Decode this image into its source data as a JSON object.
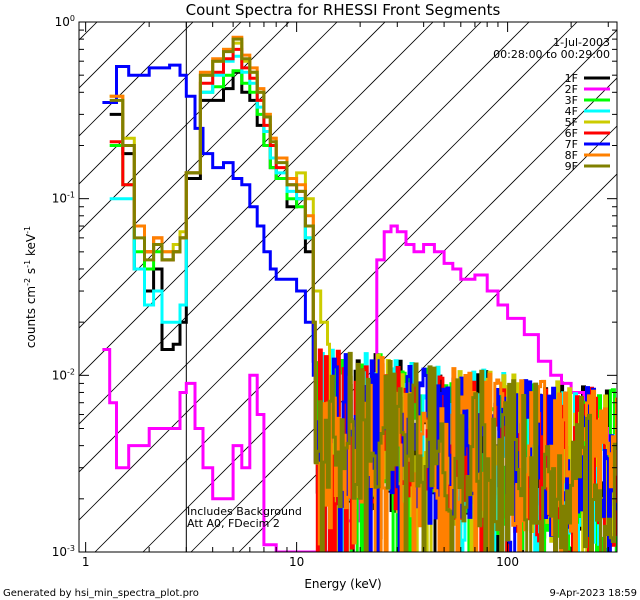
{
  "chart_data": {
    "type": "line",
    "title": "Count Spectra for RHESSI Front Segments",
    "xlabel": "Energy (keV)",
    "ylabel": "counts cm",
    "ylabel_sup1": "-2",
    "ylabel_mid": " s",
    "ylabel_sup2": "-1",
    "ylabel_end": " keV",
    "ylabel_sup3": "-1",
    "x_scale": "log",
    "y_scale": "log",
    "xlim": [
      0.93,
      330
    ],
    "ylim": [
      0.001,
      1.0
    ],
    "x_ticks": [
      {
        "value": 1,
        "label": "1"
      },
      {
        "value": 10,
        "label": "10"
      },
      {
        "value": 100,
        "label": "100"
      }
    ],
    "y_ticks": [
      {
        "value": 1.0,
        "base": "10",
        "exp": "0"
      },
      {
        "value": 0.1,
        "base": "10",
        "exp": "-1"
      },
      {
        "value": 0.01,
        "base": "10",
        "exp": "-2"
      },
      {
        "value": 0.001,
        "base": "10",
        "exp": "-3"
      }
    ],
    "attenuator_edge_keV": 3,
    "date": "1-Jul-2003",
    "time_range": "00:28:00 to 00:29:00",
    "annotation_line1": "Includes Background",
    "annotation_line2": "Att A0, FDecim 2",
    "legend_position": "top-right",
    "series": [
      {
        "name": "1F",
        "color": "#000000",
        "seed": 11,
        "values": [
          [
            1.3,
            0.3
          ],
          [
            1.5,
            0.18
          ],
          [
            1.7,
            0.04
          ],
          [
            1.9,
            0.03
          ],
          [
            2.1,
            0.04
          ],
          [
            2.3,
            0.014
          ],
          [
            2.6,
            0.015
          ],
          [
            2.8,
            0.02
          ],
          [
            3.0,
            0.13
          ],
          [
            3.5,
            0.36
          ],
          [
            4.0,
            0.36
          ],
          [
            4.5,
            0.42
          ],
          [
            5.0,
            0.52
          ],
          [
            5.5,
            0.4
          ],
          [
            6.0,
            0.36
          ],
          [
            6.5,
            0.26
          ],
          [
            7.0,
            0.2
          ],
          [
            7.5,
            0.15
          ],
          [
            8.0,
            0.13
          ],
          [
            9.0,
            0.09
          ],
          [
            10.0,
            0.1
          ],
          [
            11.0,
            0.05
          ],
          [
            12.0,
            0.012
          ]
        ]
      },
      {
        "name": "2F",
        "color": "#ff00ff",
        "seed": 22,
        "values": [
          [
            1.2,
            0.014
          ],
          [
            1.3,
            0.007
          ],
          [
            1.4,
            0.003
          ],
          [
            1.6,
            0.004
          ],
          [
            1.8,
            0.004
          ],
          [
            2.0,
            0.005
          ],
          [
            2.2,
            0.005
          ],
          [
            2.5,
            0.005
          ],
          [
            2.8,
            0.008
          ],
          [
            3.0,
            0.009
          ],
          [
            3.3,
            0.005
          ],
          [
            3.6,
            0.003
          ],
          [
            4.0,
            0.002
          ],
          [
            4.5,
            0.002
          ],
          [
            5.0,
            0.004
          ],
          [
            5.5,
            0.003
          ],
          [
            6.0,
            0.01
          ],
          [
            6.5,
            0.006
          ],
          [
            7.0,
            0.0011
          ],
          [
            8.0,
            0.001
          ],
          [
            9.0,
            0.001
          ],
          [
            15,
            0.0011
          ],
          [
            17,
            0.0015
          ],
          [
            20,
            0.003
          ],
          [
            22,
            0.008
          ],
          [
            24,
            0.045
          ],
          [
            26,
            0.065
          ],
          [
            28,
            0.07
          ],
          [
            30,
            0.065
          ],
          [
            33,
            0.055
          ],
          [
            36,
            0.05
          ],
          [
            40,
            0.055
          ],
          [
            45,
            0.05
          ],
          [
            50,
            0.043
          ],
          [
            55,
            0.04
          ],
          [
            60,
            0.035
          ],
          [
            70,
            0.037
          ],
          [
            80,
            0.03
          ],
          [
            90,
            0.025
          ],
          [
            100,
            0.021
          ],
          [
            120,
            0.017
          ],
          [
            140,
            0.012
          ],
          [
            160,
            0.01
          ],
          [
            180,
            0.009
          ],
          [
            200,
            0.008
          ],
          [
            230,
            0.007
          ],
          [
            260,
            0.005
          ],
          [
            300,
            0.004
          ],
          [
            320,
            0.0035
          ]
        ]
      },
      {
        "name": "3F",
        "color": "#00ff00",
        "seed": 33,
        "values": [
          [
            1.3,
            0.2
          ],
          [
            1.5,
            0.12
          ],
          [
            1.7,
            0.05
          ],
          [
            1.9,
            0.04
          ],
          [
            2.1,
            0.05
          ],
          [
            2.3,
            0.045
          ],
          [
            2.6,
            0.05
          ],
          [
            2.8,
            0.06
          ],
          [
            3.0,
            0.14
          ],
          [
            3.5,
            0.4
          ],
          [
            4.0,
            0.43
          ],
          [
            4.5,
            0.5
          ],
          [
            5.0,
            0.53
          ],
          [
            5.5,
            0.45
          ],
          [
            6.0,
            0.4
          ],
          [
            6.5,
            0.3
          ],
          [
            7.0,
            0.2
          ],
          [
            7.5,
            0.15
          ],
          [
            8.0,
            0.13
          ],
          [
            9.0,
            0.1
          ],
          [
            10.0,
            0.09
          ],
          [
            11.0,
            0.06
          ],
          [
            12.0,
            0.015
          ]
        ]
      },
      {
        "name": "4F",
        "color": "#00ffff",
        "seed": 44,
        "values": [
          [
            1.3,
            0.1
          ],
          [
            1.5,
            0.1
          ],
          [
            1.7,
            0.04
          ],
          [
            1.9,
            0.025
          ],
          [
            2.1,
            0.03
          ],
          [
            2.3,
            0.02
          ],
          [
            2.6,
            0.02
          ],
          [
            2.8,
            0.025
          ],
          [
            3.0,
            0.14
          ],
          [
            3.5,
            0.4
          ],
          [
            4.0,
            0.5
          ],
          [
            4.5,
            0.6
          ],
          [
            5.0,
            0.64
          ],
          [
            5.5,
            0.52
          ],
          [
            6.0,
            0.45
          ],
          [
            6.5,
            0.33
          ],
          [
            7.0,
            0.24
          ],
          [
            7.5,
            0.17
          ],
          [
            8.0,
            0.14
          ],
          [
            9.0,
            0.11
          ],
          [
            10.0,
            0.1
          ],
          [
            11.0,
            0.06
          ],
          [
            12.0,
            0.016
          ]
        ]
      },
      {
        "name": "5F",
        "color": "#cccc00",
        "seed": 55,
        "values": [
          [
            1.3,
            0.38
          ],
          [
            1.5,
            0.22
          ],
          [
            1.7,
            0.07
          ],
          [
            1.9,
            0.05
          ],
          [
            2.1,
            0.06
          ],
          [
            2.3,
            0.05
          ],
          [
            2.6,
            0.055
          ],
          [
            2.8,
            0.065
          ],
          [
            3.0,
            0.14
          ],
          [
            3.5,
            0.5
          ],
          [
            4.0,
            0.6
          ],
          [
            4.5,
            0.7
          ],
          [
            5.0,
            0.76
          ],
          [
            5.5,
            0.6
          ],
          [
            6.0,
            0.52
          ],
          [
            6.5,
            0.4
          ],
          [
            7.0,
            0.3
          ],
          [
            7.5,
            0.22
          ],
          [
            8.0,
            0.17
          ],
          [
            9.0,
            0.13
          ],
          [
            10.0,
            0.14
          ],
          [
            11.0,
            0.1
          ],
          [
            12.0,
            0.03
          ],
          [
            13.0,
            0.02
          ],
          [
            14.0,
            0.015
          ]
        ]
      },
      {
        "name": "6F",
        "color": "#ff0000",
        "seed": 66,
        "values": [
          [
            1.3,
            0.21
          ],
          [
            1.5,
            0.12
          ],
          [
            1.7,
            0.07
          ],
          [
            1.9,
            0.05
          ],
          [
            2.1,
            0.06
          ],
          [
            2.3,
            0.045
          ],
          [
            2.6,
            0.05
          ],
          [
            2.8,
            0.06
          ],
          [
            3.0,
            0.14
          ],
          [
            3.5,
            0.45
          ],
          [
            4.0,
            0.52
          ],
          [
            4.5,
            0.62
          ],
          [
            5.0,
            0.7
          ],
          [
            5.5,
            0.55
          ],
          [
            6.0,
            0.48
          ],
          [
            6.5,
            0.36
          ],
          [
            7.0,
            0.26
          ],
          [
            7.5,
            0.2
          ],
          [
            8.0,
            0.15
          ],
          [
            9.0,
            0.12
          ],
          [
            10.0,
            0.11
          ],
          [
            11.0,
            0.07
          ],
          [
            12.0,
            0.018
          ]
        ]
      },
      {
        "name": "7F",
        "color": "#0000ff",
        "seed": 77,
        "values": [
          [
            1.2,
            0.35
          ],
          [
            1.4,
            0.56
          ],
          [
            1.6,
            0.5
          ],
          [
            1.8,
            0.5
          ],
          [
            2.0,
            0.55
          ],
          [
            2.2,
            0.55
          ],
          [
            2.5,
            0.57
          ],
          [
            2.8,
            0.5
          ],
          [
            3.0,
            0.38
          ],
          [
            3.3,
            0.25
          ],
          [
            3.6,
            0.18
          ],
          [
            4.0,
            0.15
          ],
          [
            4.5,
            0.16
          ],
          [
            5.0,
            0.13
          ],
          [
            5.5,
            0.12
          ],
          [
            6.0,
            0.09
          ],
          [
            6.5,
            0.07
          ],
          [
            7.0,
            0.05
          ],
          [
            7.5,
            0.04
          ],
          [
            8.0,
            0.035
          ],
          [
            9.0,
            0.035
          ],
          [
            10.0,
            0.03
          ],
          [
            11.0,
            0.02
          ],
          [
            12.0,
            0.01
          ]
        ]
      },
      {
        "name": "8F",
        "color": "#ff8000",
        "seed": 88,
        "values": [
          [
            1.3,
            0.38
          ],
          [
            1.5,
            0.2
          ],
          [
            1.7,
            0.07
          ],
          [
            1.9,
            0.05
          ],
          [
            2.1,
            0.06
          ],
          [
            2.3,
            0.05
          ],
          [
            2.6,
            0.05
          ],
          [
            2.8,
            0.06
          ],
          [
            3.0,
            0.14
          ],
          [
            3.5,
            0.52
          ],
          [
            4.0,
            0.62
          ],
          [
            4.5,
            0.7
          ],
          [
            5.0,
            0.82
          ],
          [
            5.5,
            0.65
          ],
          [
            6.0,
            0.55
          ],
          [
            6.5,
            0.42
          ],
          [
            7.0,
            0.3
          ],
          [
            7.5,
            0.22
          ],
          [
            8.0,
            0.17
          ],
          [
            9.0,
            0.13
          ],
          [
            10.0,
            0.12
          ],
          [
            11.0,
            0.08
          ],
          [
            12.0,
            0.02
          ]
        ]
      },
      {
        "name": "9F",
        "color": "#808000",
        "seed": 99,
        "values": [
          [
            1.3,
            0.36
          ],
          [
            1.5,
            0.2
          ],
          [
            1.7,
            0.06
          ],
          [
            1.9,
            0.045
          ],
          [
            2.1,
            0.055
          ],
          [
            2.3,
            0.045
          ],
          [
            2.6,
            0.05
          ],
          [
            2.8,
            0.06
          ],
          [
            3.0,
            0.14
          ],
          [
            3.5,
            0.5
          ],
          [
            4.0,
            0.6
          ],
          [
            4.5,
            0.68
          ],
          [
            5.0,
            0.8
          ],
          [
            5.5,
            0.62
          ],
          [
            6.0,
            0.52
          ],
          [
            6.5,
            0.4
          ],
          [
            7.0,
            0.29
          ],
          [
            7.5,
            0.21
          ],
          [
            8.0,
            0.16
          ],
          [
            9.0,
            0.12
          ],
          [
            10.0,
            0.11
          ],
          [
            11.0,
            0.07
          ],
          [
            12.0,
            0.02
          ]
        ]
      }
    ]
  },
  "footer": {
    "generated_by": "Generated by hsi_min_spectra_plot.pro",
    "timestamp": "9-Apr-2023 18:59"
  }
}
